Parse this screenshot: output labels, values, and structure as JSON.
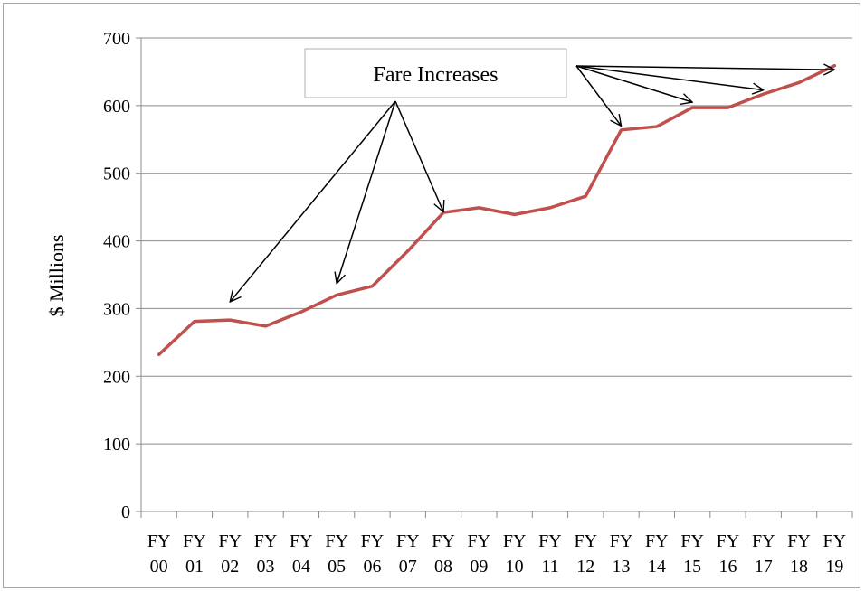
{
  "chart_data": {
    "type": "line",
    "title": "",
    "xlabel": "",
    "ylabel": "$ Millions",
    "ylim": [
      0,
      700
    ],
    "yticks": [
      0,
      100,
      200,
      300,
      400,
      500,
      600,
      700
    ],
    "grid": true,
    "categories": [
      [
        "FY",
        "00"
      ],
      [
        "FY",
        "01"
      ],
      [
        "FY",
        "02"
      ],
      [
        "FY",
        "03"
      ],
      [
        "FY",
        "04"
      ],
      [
        "FY",
        "05"
      ],
      [
        "FY",
        "06"
      ],
      [
        "FY",
        "07"
      ],
      [
        "FY",
        "08"
      ],
      [
        "FY",
        "09"
      ],
      [
        "FY",
        "10"
      ],
      [
        "FY",
        "11"
      ],
      [
        "FY",
        "12"
      ],
      [
        "FY",
        "13"
      ],
      [
        "FY",
        "14"
      ],
      [
        "FY",
        "15"
      ],
      [
        "FY",
        "16"
      ],
      [
        "FY",
        "17"
      ],
      [
        "FY",
        "18"
      ],
      [
        "FY",
        "19"
      ]
    ],
    "series": [
      {
        "values": [
          232,
          281,
          283,
          274,
          295,
          320,
          333,
          385,
          442,
          449,
          439,
          449,
          466,
          564,
          569,
          597,
          597,
          617,
          634,
          659
        ],
        "color": "#c0504d"
      }
    ],
    "annotation": {
      "label": "Fare Increases",
      "group1_targets": [
        {
          "index": 2,
          "value": 310
        },
        {
          "index": 5,
          "value": 337
        },
        {
          "index": 8,
          "value": 443
        }
      ],
      "group2_targets": [
        {
          "index": 13,
          "value": 570
        },
        {
          "index": 15,
          "value": 605
        },
        {
          "index": 17,
          "value": 623
        },
        {
          "index": 19,
          "value": 653
        }
      ]
    }
  }
}
